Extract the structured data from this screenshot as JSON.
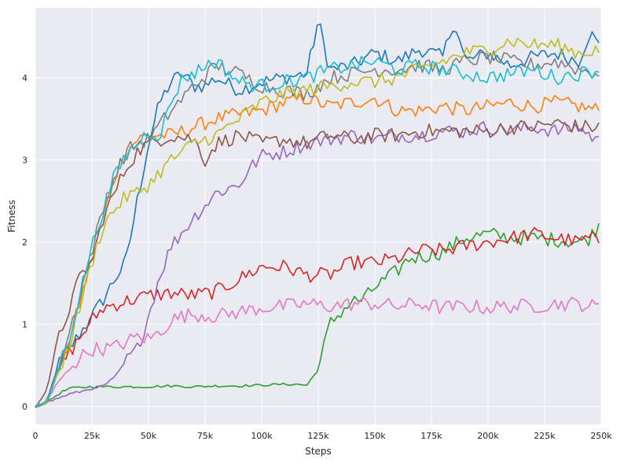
{
  "chart_data": {
    "type": "line",
    "title": "",
    "xlabel": "Steps",
    "ylabel": "Fitness",
    "xlim": [
      0,
      250000
    ],
    "ylim": [
      -0.22,
      4.85
    ],
    "grid": true,
    "legend": "none",
    "background": "#eaeaf2",
    "x_ticks": [
      0,
      25000,
      50000,
      75000,
      100000,
      125000,
      150000,
      175000,
      200000,
      225000,
      250000
    ],
    "x_tick_labels": [
      "0",
      "25k",
      "50k",
      "75k",
      "100k",
      "125k",
      "150k",
      "175k",
      "200k",
      "225k",
      "250k"
    ],
    "y_ticks": [
      0,
      1,
      2,
      3,
      4
    ],
    "y_tick_labels": [
      "0",
      "1",
      "2",
      "3",
      "4"
    ],
    "series": [
      {
        "color": "#1f77b4",
        "x": [
          0,
          5000,
          10000,
          15000,
          20000,
          25000,
          30000,
          35000,
          40000,
          45000,
          50000,
          55000,
          60000,
          65000,
          70000,
          75000,
          80000,
          90000,
          100000,
          110000,
          120000,
          125000,
          130000,
          140000,
          150000,
          160000,
          170000,
          180000,
          185000,
          190000,
          200000,
          210000,
          220000,
          230000,
          240000,
          245000,
          250000
        ],
        "y": [
          0,
          0.05,
          0.5,
          0.7,
          0.9,
          1.1,
          1.3,
          1.55,
          1.75,
          2.5,
          3.2,
          3.7,
          3.95,
          4.05,
          3.9,
          3.9,
          4.0,
          3.85,
          3.95,
          4.0,
          4.05,
          4.7,
          4.1,
          4.15,
          4.3,
          4.2,
          4.35,
          4.25,
          4.7,
          4.2,
          4.3,
          4.15,
          4.25,
          4.3,
          4.2,
          4.55,
          4.35
        ]
      },
      {
        "color": "#ff7f0e",
        "x": [
          0,
          5000,
          10000,
          15000,
          20000,
          25000,
          30000,
          35000,
          40000,
          45000,
          50000,
          60000,
          70000,
          80000,
          90000,
          100000,
          110000,
          120000,
          130000,
          140000,
          150000,
          160000,
          170000,
          180000,
          190000,
          200000,
          210000,
          220000,
          230000,
          240000,
          250000
        ],
        "y": [
          0,
          0.05,
          0.45,
          0.8,
          1.3,
          1.8,
          2.3,
          2.8,
          3.1,
          3.25,
          3.3,
          3.3,
          3.4,
          3.5,
          3.55,
          3.6,
          3.7,
          3.75,
          3.65,
          3.7,
          3.75,
          3.6,
          3.6,
          3.65,
          3.6,
          3.65,
          3.7,
          3.65,
          3.7,
          3.65,
          3.6
        ]
      },
      {
        "color": "#2ca02c",
        "x": [
          0,
          5000,
          10000,
          15000,
          20000,
          25000,
          30000,
          40000,
          50000,
          60000,
          70000,
          80000,
          90000,
          100000,
          110000,
          115000,
          120000,
          125000,
          130000,
          135000,
          140000,
          145000,
          150000,
          160000,
          165000,
          170000,
          180000,
          190000,
          200000,
          210000,
          220000,
          230000,
          240000,
          245000,
          250000
        ],
        "y": [
          0,
          0.05,
          0.15,
          0.22,
          0.23,
          0.24,
          0.24,
          0.24,
          0.24,
          0.25,
          0.24,
          0.25,
          0.25,
          0.26,
          0.27,
          0.27,
          0.26,
          0.45,
          1.0,
          1.15,
          1.28,
          1.3,
          1.45,
          1.65,
          1.8,
          1.82,
          1.88,
          2.05,
          2.1,
          2.05,
          2.05,
          2.03,
          2.0,
          2.05,
          2.25
        ]
      },
      {
        "color": "#d62728",
        "x": [
          0,
          5000,
          10000,
          15000,
          20000,
          25000,
          30000,
          40000,
          50000,
          60000,
          70000,
          80000,
          90000,
          100000,
          110000,
          120000,
          130000,
          140000,
          150000,
          160000,
          170000,
          180000,
          190000,
          200000,
          210000,
          220000,
          230000,
          240000,
          245000,
          250000
        ],
        "y": [
          0,
          0.05,
          0.45,
          0.65,
          0.85,
          1.05,
          1.2,
          1.28,
          1.35,
          1.38,
          1.35,
          1.4,
          1.55,
          1.7,
          1.7,
          1.6,
          1.6,
          1.75,
          1.75,
          1.8,
          1.9,
          1.9,
          1.95,
          2.0,
          2.05,
          2.1,
          2.05,
          2.0,
          2.05,
          2.0
        ]
      },
      {
        "color": "#9467bd",
        "x": [
          0,
          10000,
          15000,
          20000,
          25000,
          30000,
          35000,
          40000,
          45000,
          50000,
          55000,
          60000,
          70000,
          80000,
          90000,
          95000,
          100000,
          110000,
          120000,
          130000,
          140000,
          150000,
          160000,
          170000,
          180000,
          190000,
          200000,
          210000,
          220000,
          230000,
          240000,
          245000,
          250000
        ],
        "y": [
          0,
          0.1,
          0.15,
          0.18,
          0.22,
          0.25,
          0.35,
          0.55,
          0.7,
          1.1,
          1.6,
          1.95,
          2.3,
          2.6,
          2.7,
          2.9,
          3.05,
          3.1,
          3.2,
          3.25,
          3.3,
          3.25,
          3.3,
          3.3,
          3.35,
          3.35,
          3.4,
          3.35,
          3.4,
          3.35,
          3.4,
          3.3,
          3.2
        ]
      },
      {
        "color": "#8c564b",
        "x": [
          0,
          5000,
          10000,
          15000,
          20000,
          25000,
          30000,
          35000,
          40000,
          45000,
          50000,
          60000,
          70000,
          75000,
          80000,
          90000,
          100000,
          110000,
          120000,
          130000,
          140000,
          150000,
          160000,
          170000,
          180000,
          190000,
          200000,
          210000,
          220000,
          230000,
          240000,
          250000
        ],
        "y": [
          0,
          0.2,
          0.8,
          1.2,
          1.6,
          1.75,
          2.3,
          2.6,
          2.9,
          3.1,
          3.2,
          3.3,
          3.25,
          3.0,
          3.2,
          3.3,
          3.2,
          3.25,
          3.2,
          3.3,
          3.25,
          3.3,
          3.3,
          3.35,
          3.35,
          3.35,
          3.35,
          3.4,
          3.4,
          3.45,
          3.4,
          3.4
        ]
      },
      {
        "color": "#e377c2",
        "x": [
          0,
          5000,
          10000,
          15000,
          20000,
          25000,
          30000,
          35000,
          40000,
          45000,
          50000,
          55000,
          60000,
          65000,
          70000,
          80000,
          90000,
          100000,
          110000,
          120000,
          130000,
          140000,
          150000,
          160000,
          170000,
          180000,
          190000,
          200000,
          210000,
          220000,
          230000,
          240000,
          250000
        ],
        "y": [
          0,
          0.05,
          0.3,
          0.45,
          0.6,
          0.7,
          0.7,
          0.72,
          0.78,
          0.85,
          0.82,
          0.9,
          1.05,
          1.1,
          1.12,
          1.1,
          1.15,
          1.2,
          1.22,
          1.25,
          1.22,
          1.25,
          1.25,
          1.22,
          1.25,
          1.2,
          1.22,
          1.2,
          1.22,
          1.22,
          1.25,
          1.25,
          1.2
        ]
      },
      {
        "color": "#7f7f7f",
        "x": [
          0,
          5000,
          10000,
          15000,
          20000,
          25000,
          30000,
          35000,
          40000,
          45000,
          50000,
          60000,
          70000,
          80000,
          90000,
          100000,
          110000,
          120000,
          130000,
          140000,
          150000,
          160000,
          170000,
          180000,
          190000,
          200000,
          210000,
          220000,
          230000,
          240000,
          250000
        ],
        "y": [
          0,
          0.05,
          0.4,
          0.9,
          1.4,
          1.9,
          2.4,
          2.8,
          3.1,
          3.2,
          3.25,
          3.6,
          3.9,
          4.15,
          4.05,
          3.9,
          3.85,
          3.8,
          4.0,
          4.05,
          4.1,
          4.1,
          4.15,
          4.1,
          4.2,
          4.25,
          4.2,
          4.15,
          4.2,
          4.1,
          4.05
        ]
      },
      {
        "color": "#bcbd22",
        "x": [
          0,
          5000,
          10000,
          15000,
          20000,
          25000,
          30000,
          35000,
          40000,
          45000,
          50000,
          55000,
          60000,
          65000,
          70000,
          80000,
          90000,
          100000,
          110000,
          120000,
          130000,
          140000,
          150000,
          160000,
          170000,
          180000,
          190000,
          200000,
          210000,
          220000,
          230000,
          240000,
          250000
        ],
        "y": [
          0,
          0.05,
          0.4,
          0.75,
          1.25,
          1.75,
          2.2,
          2.4,
          2.55,
          2.6,
          2.7,
          2.85,
          3.0,
          3.1,
          3.2,
          3.3,
          3.5,
          3.7,
          3.8,
          3.85,
          3.9,
          3.95,
          3.95,
          4.0,
          4.1,
          4.2,
          4.3,
          4.35,
          4.45,
          4.4,
          4.4,
          4.3,
          4.35
        ]
      },
      {
        "color": "#17becf",
        "x": [
          0,
          5000,
          10000,
          15000,
          20000,
          25000,
          30000,
          35000,
          40000,
          45000,
          50000,
          55000,
          60000,
          65000,
          70000,
          75000,
          80000,
          90000,
          100000,
          110000,
          120000,
          130000,
          140000,
          150000,
          160000,
          170000,
          180000,
          190000,
          200000,
          210000,
          220000,
          230000,
          240000,
          250000
        ],
        "y": [
          0,
          0.05,
          0.45,
          0.85,
          1.4,
          1.95,
          2.4,
          2.8,
          3.05,
          3.2,
          3.35,
          3.3,
          3.7,
          4.0,
          4.05,
          4.15,
          4.2,
          3.95,
          3.9,
          3.95,
          4.0,
          4.1,
          4.15,
          4.2,
          4.1,
          4.15,
          4.1,
          4.05,
          4.0,
          4.05,
          4.1,
          4.0,
          4.05,
          4.1
        ]
      }
    ]
  }
}
